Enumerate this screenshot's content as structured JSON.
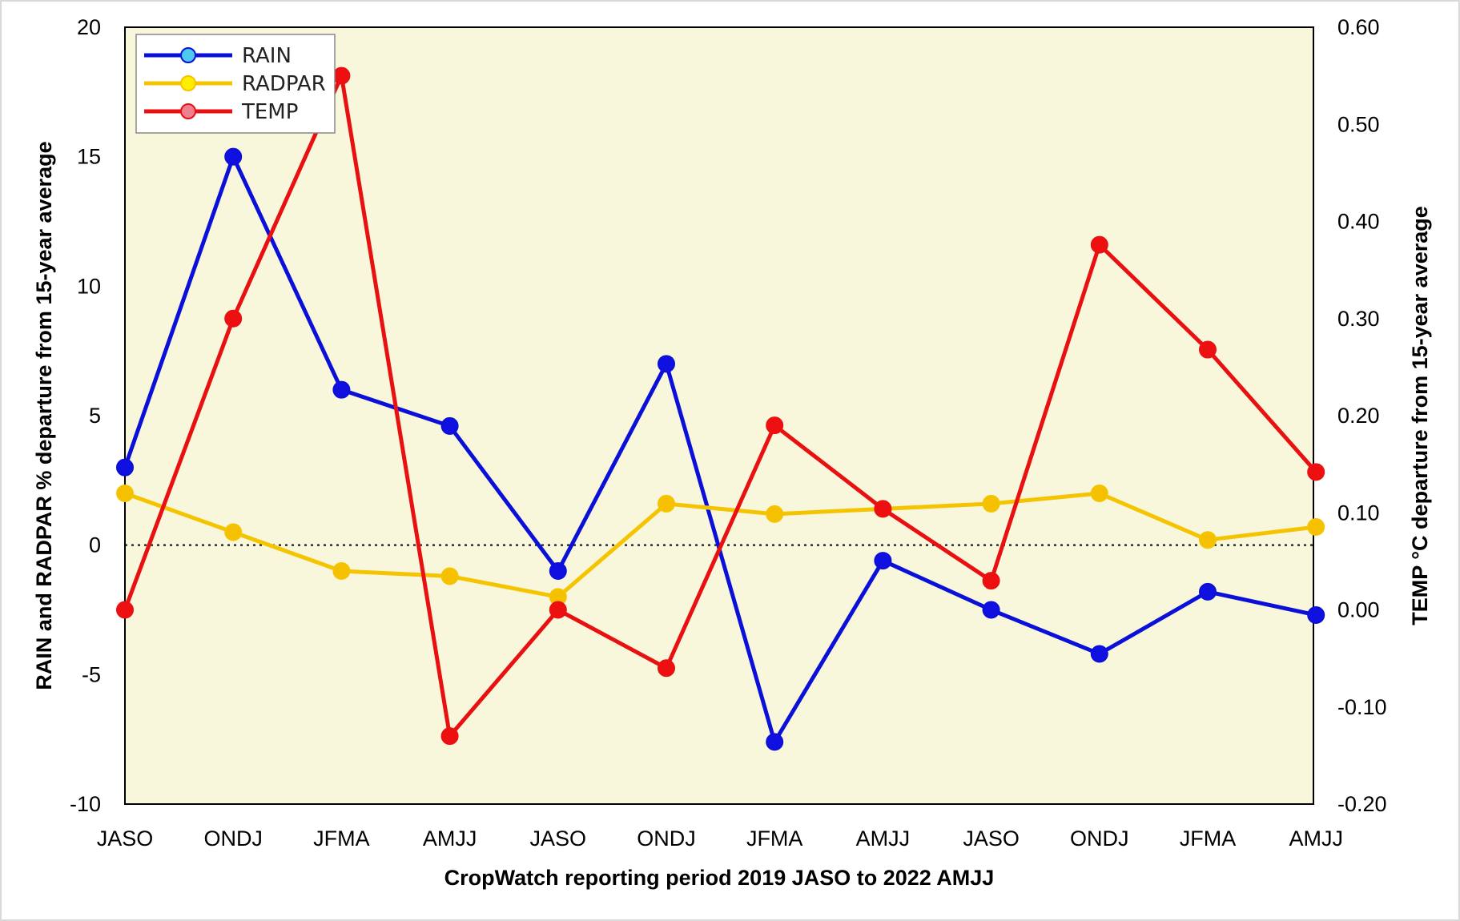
{
  "chart_data": {
    "type": "line",
    "categories": [
      "JASO",
      "ONDJ",
      "JFMA",
      "AMJJ",
      "JASO",
      "ONDJ",
      "JFMA",
      "AMJJ",
      "JASO",
      "ONDJ",
      "JFMA",
      "AMJJ"
    ],
    "xlabel": "CropWatch reporting period 2019 JASO to 2022 AMJJ",
    "ylabel": "RAIN and RADPAR % departure from 15-year average",
    "y2label": "TEMP °C departure from 15-year average",
    "ylim": [
      -10,
      20
    ],
    "y2lim": [
      -0.2,
      0.6
    ],
    "yticks": [
      "20",
      "15",
      "10",
      "5",
      "0",
      "-5",
      "-10"
    ],
    "y2ticks": [
      "0.60",
      "0.50",
      "0.40",
      "0.30",
      "0.20",
      "0.10",
      "0.00",
      "-0.10",
      "-0.20"
    ],
    "reference_line": 0,
    "legend_position": "top-left",
    "series": [
      {
        "name": "RAIN",
        "axis": "left",
        "color": "#0a10d8",
        "marker": "#1010e0",
        "legend_marker": "#4dc8f0",
        "values": [
          3.0,
          15.0,
          6.0,
          4.6,
          -1.0,
          7.0,
          -7.6,
          -0.6,
          -2.5,
          -4.2,
          -1.8,
          -2.7
        ]
      },
      {
        "name": "RADPAR",
        "axis": "left",
        "color": "#f5c400",
        "marker": "#f5c000",
        "legend_marker": "#ffee00",
        "values": [
          2.0,
          0.5,
          -1.0,
          -1.2,
          -2.0,
          1.6,
          1.2,
          1.4,
          1.6,
          2.0,
          0.2,
          0.7
        ]
      },
      {
        "name": "TEMP",
        "axis": "right",
        "color": "#e81010",
        "marker": "#ee1010",
        "legend_marker": "#f08090",
        "values": [
          0.0,
          0.3,
          0.55,
          -0.13,
          0.0,
          -0.06,
          0.19,
          0.104,
          0.03,
          0.376,
          0.268,
          0.142
        ]
      }
    ]
  }
}
